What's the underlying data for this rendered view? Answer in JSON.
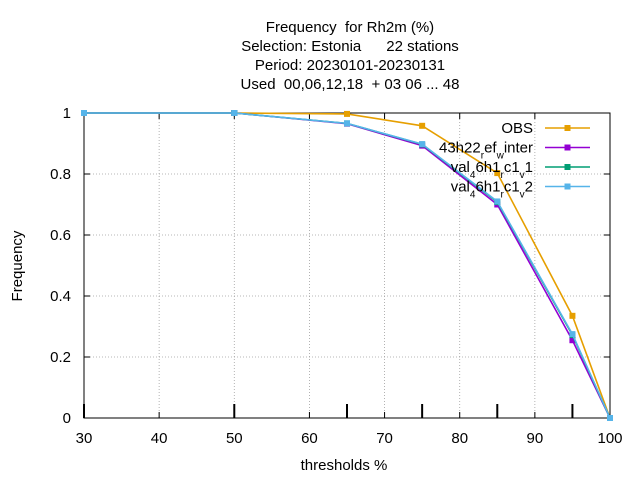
{
  "chart_data": {
    "type": "line",
    "title_lines": [
      "Frequency  for Rh2m (%)",
      "Selection: Estonia      22 stations",
      "Period: 20230101-20230131",
      "Used  00,06,12,18  + 03 06 ... 48"
    ],
    "xlabel": "thresholds %",
    "ylabel": "Frequency",
    "xlim": [
      30,
      100
    ],
    "ylim": [
      0,
      1
    ],
    "xticks": [
      30,
      40,
      50,
      60,
      70,
      80,
      90,
      100
    ],
    "yticks": [
      0,
      0.2,
      0.4,
      0.6,
      0.8,
      1
    ],
    "ytick_labels": [
      "0",
      "0.2",
      "0.4",
      "0.6",
      "0.8",
      "1"
    ],
    "grid": true,
    "legend_position": "top-right",
    "threshold_markers": [
      30,
      50,
      65,
      75,
      85,
      95
    ],
    "series": [
      {
        "name": "OBS",
        "legend": [
          {
            "t": "OBS"
          }
        ],
        "color": "#e69f00",
        "x": [
          30,
          50,
          65,
          75,
          85,
          95,
          100
        ],
        "y": [
          1.0,
          1.0,
          0.997,
          0.958,
          0.803,
          0.335,
          0.0
        ]
      },
      {
        "name": "43h22_ref_winter",
        "legend": [
          {
            "t": "43h22"
          },
          {
            "t": "r",
            "s": "sub"
          },
          {
            "t": "ef"
          },
          {
            "t": "w",
            "s": "sub"
          },
          {
            "t": "inter"
          }
        ],
        "color": "#9400d3",
        "x": [
          30,
          50,
          65,
          75,
          85,
          95,
          100
        ],
        "y": [
          1.0,
          1.0,
          0.965,
          0.893,
          0.7,
          0.255,
          0.0
        ]
      },
      {
        "name": "val_46h1_rc1_v1",
        "legend": [
          {
            "t": "val"
          },
          {
            "t": "4",
            "s": "sub"
          },
          {
            "t": "6h1"
          },
          {
            "t": "r",
            "s": "sub"
          },
          {
            "t": "c1"
          },
          {
            "t": "v",
            "s": "sub"
          },
          {
            "t": "1"
          }
        ],
        "color": "#009e73",
        "x": [
          30,
          50,
          65,
          75,
          85,
          95,
          100
        ],
        "y": [
          1.0,
          1.0,
          0.966,
          0.897,
          0.708,
          0.272,
          0.0
        ]
      },
      {
        "name": "val_46h1_rc1_v2",
        "legend": [
          {
            "t": "val"
          },
          {
            "t": "4",
            "s": "sub"
          },
          {
            "t": "6h1"
          },
          {
            "t": "r",
            "s": "sub"
          },
          {
            "t": "c1"
          },
          {
            "t": "v",
            "s": "sub"
          },
          {
            "t": "2"
          }
        ],
        "color": "#56b4e9",
        "x": [
          30,
          50,
          65,
          75,
          85,
          95,
          100
        ],
        "y": [
          1.0,
          1.0,
          0.966,
          0.898,
          0.71,
          0.275,
          0.0
        ]
      }
    ]
  }
}
